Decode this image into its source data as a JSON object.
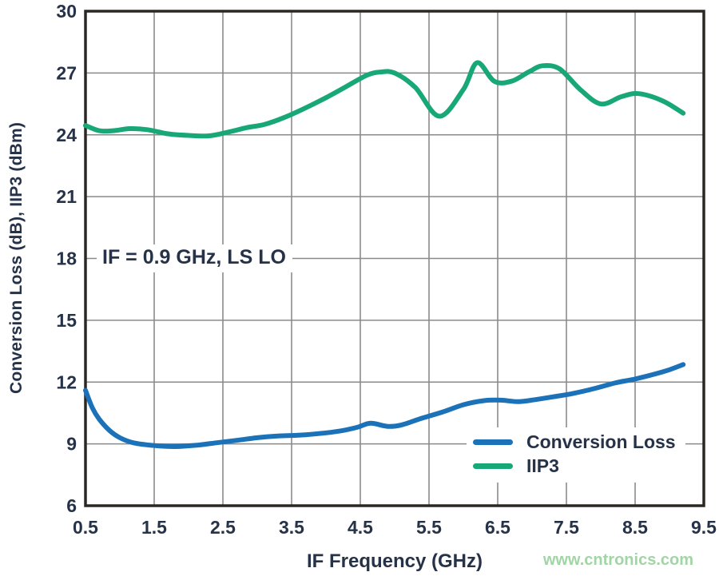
{
  "chart_data": {
    "type": "line",
    "title": "",
    "xlabel": "IF Frequency (GHz)",
    "ylabel": "Conversion Loss (dB), IIP3 (dBm)",
    "xlim": [
      0.5,
      9.5
    ],
    "ylim": [
      6,
      30
    ],
    "x_ticks": [
      "0.5",
      "1.5",
      "2.5",
      "3.5",
      "4.5",
      "5.5",
      "6.5",
      "7.5",
      "8.5",
      "9.5"
    ],
    "y_ticks": [
      "6",
      "9",
      "12",
      "15",
      "18",
      "21",
      "24",
      "27",
      "30"
    ],
    "grid": true,
    "legend_position": "inside-bottom-right",
    "annotation": "IF = 0.9 GHz, LS LO",
    "series": [
      {
        "name": "Conversion Loss",
        "color": "#1b72b8",
        "points": [
          [
            0.5,
            11.6
          ],
          [
            0.6,
            10.75
          ],
          [
            0.7,
            10.2
          ],
          [
            0.85,
            9.65
          ],
          [
            1.0,
            9.3
          ],
          [
            1.2,
            9.05
          ],
          [
            1.5,
            8.92
          ],
          [
            1.8,
            8.87
          ],
          [
            2.1,
            8.93
          ],
          [
            2.4,
            9.05
          ],
          [
            2.7,
            9.17
          ],
          [
            3.0,
            9.3
          ],
          [
            3.3,
            9.38
          ],
          [
            3.6,
            9.42
          ],
          [
            3.9,
            9.5
          ],
          [
            4.2,
            9.62
          ],
          [
            4.45,
            9.8
          ],
          [
            4.65,
            10.0
          ],
          [
            4.9,
            9.85
          ],
          [
            5.1,
            9.92
          ],
          [
            5.4,
            10.25
          ],
          [
            5.7,
            10.55
          ],
          [
            6.0,
            10.9
          ],
          [
            6.3,
            11.1
          ],
          [
            6.55,
            11.12
          ],
          [
            6.8,
            11.05
          ],
          [
            7.05,
            11.15
          ],
          [
            7.3,
            11.28
          ],
          [
            7.6,
            11.45
          ],
          [
            7.9,
            11.68
          ],
          [
            8.2,
            11.95
          ],
          [
            8.5,
            12.15
          ],
          [
            8.8,
            12.4
          ],
          [
            9.0,
            12.6
          ],
          [
            9.2,
            12.85
          ]
        ]
      },
      {
        "name": "IIP3",
        "color": "#18a878",
        "points": [
          [
            0.5,
            24.45
          ],
          [
            0.7,
            24.2
          ],
          [
            0.9,
            24.2
          ],
          [
            1.15,
            24.3
          ],
          [
            1.4,
            24.25
          ],
          [
            1.7,
            24.05
          ],
          [
            2.0,
            23.97
          ],
          [
            2.3,
            23.95
          ],
          [
            2.6,
            24.15
          ],
          [
            2.85,
            24.35
          ],
          [
            3.1,
            24.5
          ],
          [
            3.4,
            24.85
          ],
          [
            3.7,
            25.3
          ],
          [
            4.0,
            25.8
          ],
          [
            4.3,
            26.35
          ],
          [
            4.6,
            26.9
          ],
          [
            4.8,
            27.05
          ],
          [
            5.0,
            27.0
          ],
          [
            5.3,
            26.3
          ],
          [
            5.65,
            24.9
          ],
          [
            6.0,
            26.2
          ],
          [
            6.2,
            27.5
          ],
          [
            6.45,
            26.6
          ],
          [
            6.7,
            26.6
          ],
          [
            6.95,
            27.05
          ],
          [
            7.15,
            27.35
          ],
          [
            7.4,
            27.2
          ],
          [
            7.7,
            26.2
          ],
          [
            8.0,
            25.5
          ],
          [
            8.3,
            25.85
          ],
          [
            8.55,
            26.0
          ],
          [
            8.9,
            25.65
          ],
          [
            9.2,
            25.05
          ]
        ]
      }
    ]
  },
  "watermark": {
    "text": "www.cntronics.com"
  },
  "colors": {
    "axis_text": "#263248",
    "grid": "#8a8a8a",
    "border": "#2b2824",
    "background": "#ffffff"
  }
}
